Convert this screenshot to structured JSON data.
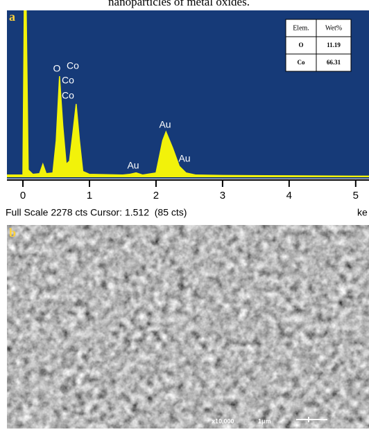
{
  "caption": "nanoparticles of metal oxides.",
  "panel_a": {
    "label": "a",
    "status": "Full Scale 2278 cts Cursor: 1.512  (85 cts)",
    "unit": "ke",
    "table": {
      "header": [
        "Elem.",
        "Wet%"
      ],
      "rows": [
        [
          "O",
          "11.19"
        ],
        [
          "Co",
          "66.31"
        ]
      ]
    }
  },
  "chart_data": {
    "type": "line",
    "color": "#f2f20a",
    "x": [
      -0.24,
      0,
      0.02,
      0.05,
      0.08,
      0.15,
      0.25,
      0.3,
      0.35,
      0.45,
      0.5,
      0.55,
      0.6,
      0.65,
      0.7,
      0.75,
      0.8,
      0.85,
      0.9,
      1.0,
      1.5,
      1.6,
      1.7,
      1.8,
      2.0,
      2.1,
      2.15,
      2.25,
      2.35,
      2.45,
      2.6,
      3,
      4,
      5,
      5.2
    ],
    "y": [
      30,
      30,
      2278,
      2278,
      100,
      40,
      50,
      180,
      50,
      60,
      500,
      1380,
      700,
      180,
      220,
      600,
      1000,
      500,
      80,
      40,
      30,
      40,
      60,
      30,
      60,
      500,
      620,
      400,
      150,
      60,
      30,
      25,
      20,
      15,
      15
    ],
    "xlim": [
      -0.24,
      5.2
    ],
    "ylim": [
      0,
      2278
    ],
    "xticks": [
      0,
      1,
      2,
      3,
      4,
      5
    ],
    "annotations": [
      "O",
      "Co",
      "Co",
      "Co",
      "Au",
      "Au",
      "Au"
    ]
  },
  "panel_b": {
    "label": "b",
    "magnification": "x10,000",
    "scale": "1μm"
  }
}
